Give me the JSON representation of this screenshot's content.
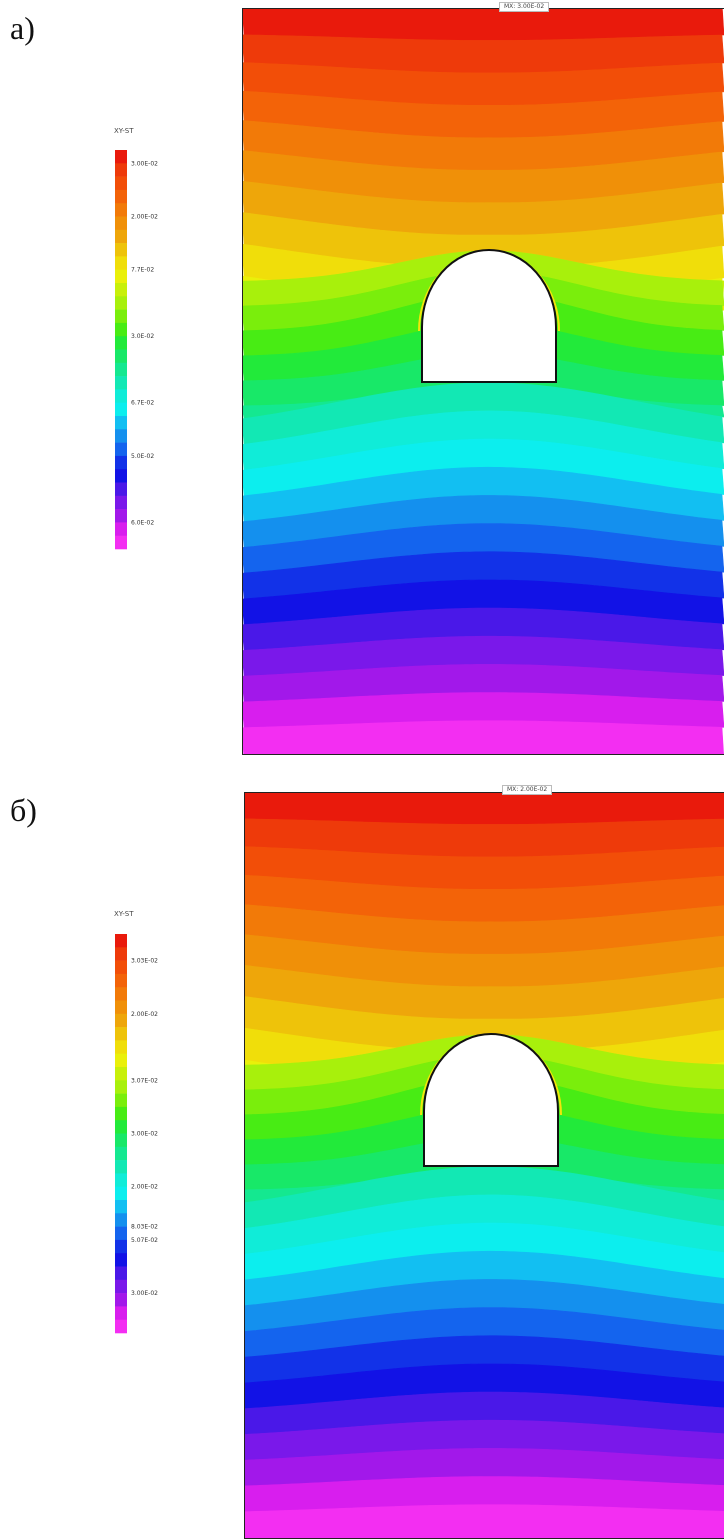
{
  "panels": [
    {
      "label": "а)",
      "legend_title": "XY-ST",
      "max_label": "MX: 3.00E-02",
      "legend_values": [
        "3.00E-02",
        "",
        "",
        "",
        "2.00E-02",
        "",
        "",
        "",
        "7.7E-02",
        "",
        "",
        "",
        "",
        "3.0E-02",
        "",
        "",
        "",
        "",
        "6.7E-02",
        "",
        "",
        "",
        "5.0E-02",
        "",
        "",
        "",
        "",
        "6.0E-02",
        ""
      ],
      "colors": [
        "#e91a0c",
        "#ee3a0a",
        "#f24e08",
        "#f36308",
        "#f27a08",
        "#f09008",
        "#eea60a",
        "#eec30a",
        "#f0de0a",
        "#eaf00a",
        "#c8f00a",
        "#a8f00c",
        "#7aee0c",
        "#48ec14",
        "#22ea3a",
        "#18e868",
        "#14e890",
        "#12e8b4",
        "#10ecd8",
        "#0ceeee",
        "#12bff2",
        "#1490ee",
        "#1464ee",
        "#1232e8",
        "#1212e6",
        "#4a18e8",
        "#7a18ea",
        "#a218ea",
        "#d81eee",
        "#f32ef2"
      ]
    },
    {
      "label": "б)",
      "legend_title": "XY-ST",
      "max_label": "MX: 2.00E-02",
      "legend_values": [
        "",
        "3.03E-02",
        "",
        "",
        "",
        "2.00E-02",
        "",
        "",
        "",
        "",
        "3.07E-02",
        "",
        "",
        "",
        "3.00E-02",
        "",
        "",
        "",
        "2.00E-02",
        "",
        "",
        "8.03E-02",
        "5.07E-02",
        "",
        "",
        "",
        "3.00E-02",
        "",
        ""
      ],
      "colors": [
        "#e91a0c",
        "#ee3a0a",
        "#f24e08",
        "#f36308",
        "#f27a08",
        "#f09008",
        "#eea60a",
        "#eec30a",
        "#f0de0a",
        "#eaf00a",
        "#c8f00a",
        "#a8f00c",
        "#7aee0c",
        "#48ec14",
        "#22ea3a",
        "#18e868",
        "#14e890",
        "#12e8b4",
        "#10ecd8",
        "#0ceeee",
        "#12bff2",
        "#1490ee",
        "#1464ee",
        "#1232e8",
        "#1212e6",
        "#4a18e8",
        "#7a18ea",
        "#a218ea",
        "#d81eee",
        "#f32ef2"
      ]
    }
  ]
}
